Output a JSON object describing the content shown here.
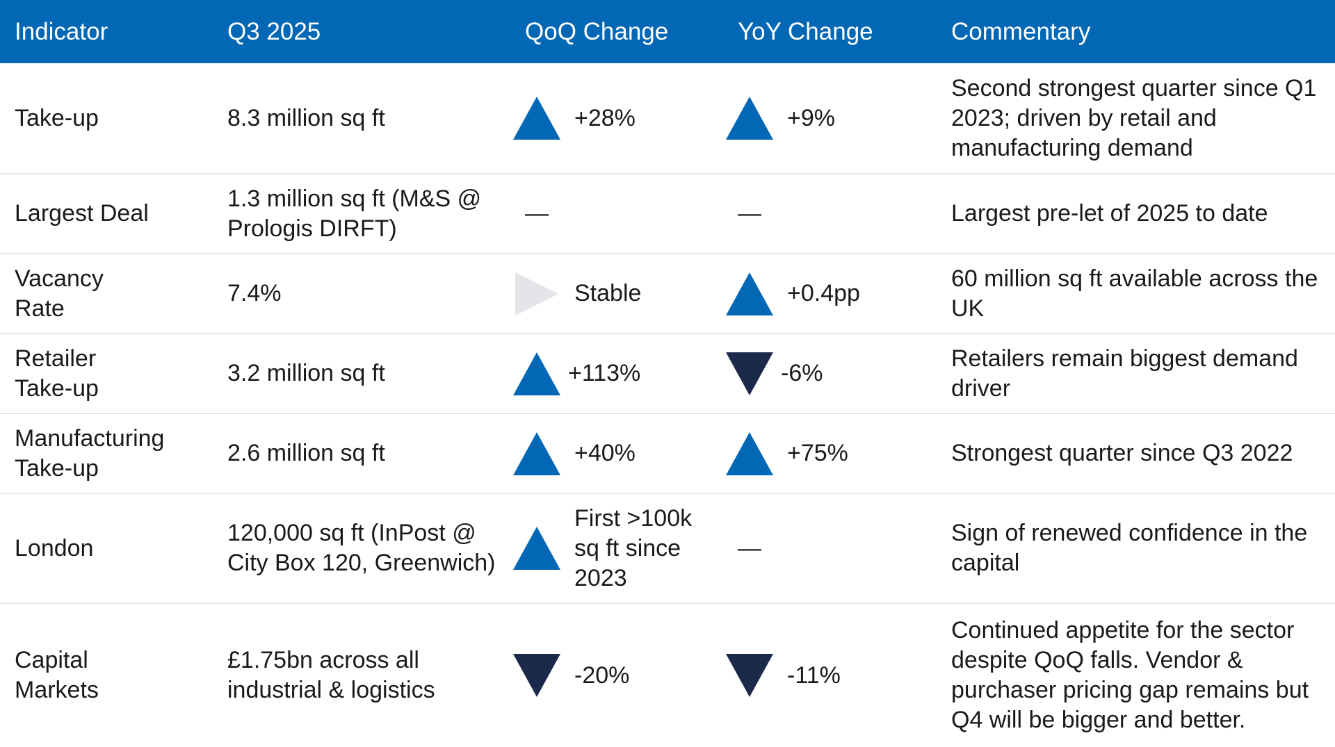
{
  "colors": {
    "header_bg": "#0267b5",
    "up": "#0267b5",
    "down": "#1b2a4a",
    "stable": "#e2e4e8",
    "divider": "#e3e6ea"
  },
  "header": {
    "indicator": "Indicator",
    "q3": "Q3 2025",
    "qoq": "QoQ Change",
    "yoy": "YoY Change",
    "commentary": "Commentary"
  },
  "rows": [
    {
      "indicator": "Take-up",
      "q3": "8.3 million sq ft",
      "qoq": {
        "icon": "triangle-up-icon",
        "value": "+28%"
      },
      "yoy": {
        "icon": "triangle-up-icon",
        "value": "+9%"
      },
      "commentary": "Second strongest quarter since Q1 2023; driven by retail and manufacturing demand"
    },
    {
      "indicator": "Largest Deal",
      "q3": "1.3 million sq ft (M&S @ Prologis DIRFT)",
      "qoq": {
        "icon": "",
        "value": "—"
      },
      "yoy": {
        "icon": "",
        "value": "—"
      },
      "commentary": "Largest pre-let of 2025 to date"
    },
    {
      "indicator": "Vacancy Rate",
      "q3": "7.4%",
      "qoq": {
        "icon": "triangle-right-icon",
        "value": "Stable"
      },
      "yoy": {
        "icon": "triangle-up-icon",
        "value": "+0.4pp"
      },
      "commentary": "60 million sq ft available across the UK"
    },
    {
      "indicator": "Retailer Take-up",
      "q3": "3.2 million sq ft",
      "qoq": {
        "icon": "triangle-up-icon",
        "value": "+113%"
      },
      "yoy": {
        "icon": "triangle-down-icon",
        "value": "-6%"
      },
      "commentary": "Retailers remain biggest demand driver"
    },
    {
      "indicator": "Manufacturing Take-up",
      "q3": "2.6 million sq ft",
      "qoq": {
        "icon": "triangle-up-icon",
        "value": "+40%"
      },
      "yoy": {
        "icon": "triangle-up-icon",
        "value": "+75%"
      },
      "commentary": "Strongest quarter since Q3 2022"
    },
    {
      "indicator": "London",
      "q3": "120,000 sq ft (InPost @ City Box 120, Greenwich)",
      "qoq": {
        "icon": "triangle-up-icon",
        "value": "First >100k sq ft since 2023"
      },
      "yoy": {
        "icon": "",
        "value": "—"
      },
      "commentary": "Sign of renewed confidence in the capital"
    },
    {
      "indicator": "Capital Markets",
      "q3": "£1.75bn across all industrial & logistics",
      "qoq": {
        "icon": "triangle-down-icon",
        "value": "-20%"
      },
      "yoy": {
        "icon": "triangle-down-icon",
        "value": "-11%"
      },
      "commentary": "Continued appetite for the sector despite QoQ falls. Vendor & purchaser pricing gap remains but Q4 will be bigger and better."
    }
  ]
}
